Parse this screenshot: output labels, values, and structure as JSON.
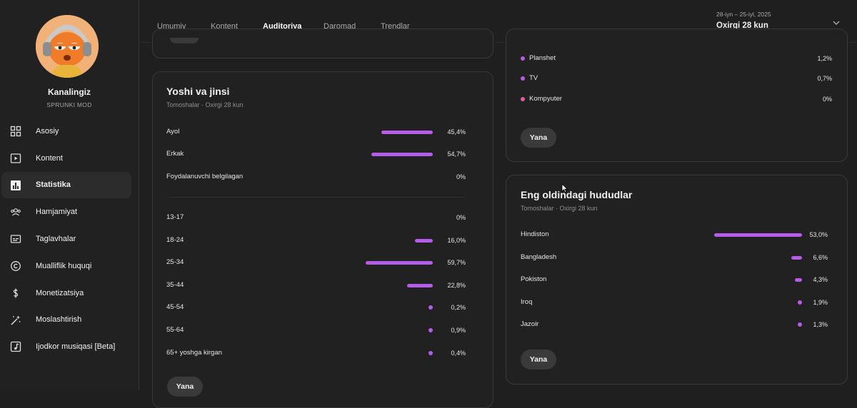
{
  "channel": {
    "name": "Kanalingiz",
    "subtitle": "SPRUNKI MOD"
  },
  "sidebar": {
    "items": [
      {
        "label": "Asosiy",
        "icon": "dashboard-icon",
        "active": false
      },
      {
        "label": "Kontent",
        "icon": "content-icon",
        "active": false
      },
      {
        "label": "Statistika",
        "icon": "analytics-icon",
        "active": true
      },
      {
        "label": "Hamjamiyat",
        "icon": "community-icon",
        "active": false
      },
      {
        "label": "Taglavhalar",
        "icon": "subtitles-icon",
        "active": false
      },
      {
        "label": "Mualliflik huquqi",
        "icon": "copyright-icon",
        "active": false
      },
      {
        "label": "Monetizatsiya",
        "icon": "dollar-icon",
        "active": false
      },
      {
        "label": "Moslashtirish",
        "icon": "magic-wand-icon",
        "active": false
      },
      {
        "label": "Ijodkor musiqasi [Beta]",
        "icon": "music-icon",
        "active": false
      }
    ]
  },
  "header": {
    "tabs": [
      "Umumiy",
      "Kontent",
      "Auditoriya",
      "Daromad",
      "Trendlar"
    ],
    "active_tab": "Auditoriya",
    "date_range": "28-iyn – 25-iyl, 2025",
    "period": "Oxirgi 28 kun"
  },
  "age_gender": {
    "title": "Yoshi va jinsi",
    "subtitle": "Tomoshalar · Oxirgi 28 kun",
    "gender": [
      {
        "label": "Ayol",
        "value": "45,4%",
        "pct": 45.4
      },
      {
        "label": "Erkak",
        "value": "54,7%",
        "pct": 54.7
      },
      {
        "label": "Foydalanuvchi belgilagan",
        "value": "0%",
        "pct": 0
      }
    ],
    "ages": [
      {
        "label": "13-17",
        "value": "0%",
        "pct": 0
      },
      {
        "label": "18-24",
        "value": "16,0%",
        "pct": 16.0
      },
      {
        "label": "25-34",
        "value": "59,7%",
        "pct": 59.7
      },
      {
        "label": "35-44",
        "value": "22,8%",
        "pct": 22.8
      },
      {
        "label": "45-54",
        "value": "0,2%",
        "pct": 0.2
      },
      {
        "label": "55-64",
        "value": "0,9%",
        "pct": 0.9
      },
      {
        "label": "65+ yoshga kirgan",
        "value": "0,4%",
        "pct": 0.4
      }
    ],
    "more_label": "Yana"
  },
  "devices": {
    "items": [
      {
        "label": "Planshet",
        "value": "1,2%",
        "color": "#b55ce8"
      },
      {
        "label": "TV",
        "value": "0,7%",
        "color": "#b55ce8"
      },
      {
        "label": "Kompyuter",
        "value": "0%",
        "color": "#e05ca0"
      }
    ],
    "more_label": "Yana"
  },
  "regions": {
    "title": "Eng oldindagi hududlar",
    "subtitle": "Tomoshalar · Oxirgi 28 kun",
    "items": [
      {
        "label": "Hindiston",
        "value": "53,0%",
        "pct": 53.0
      },
      {
        "label": "Bangladesh",
        "value": "6,6%",
        "pct": 6.6
      },
      {
        "label": "Pokiston",
        "value": "4,3%",
        "pct": 4.3
      },
      {
        "label": "Iroq",
        "value": "1,9%",
        "pct": 1.9
      },
      {
        "label": "Jazoir",
        "value": "1,3%",
        "pct": 1.3
      }
    ],
    "more_label": "Yana"
  },
  "colors": {
    "accent": "#b55ce8",
    "background": "#1f1f1f",
    "card": "#212121"
  }
}
